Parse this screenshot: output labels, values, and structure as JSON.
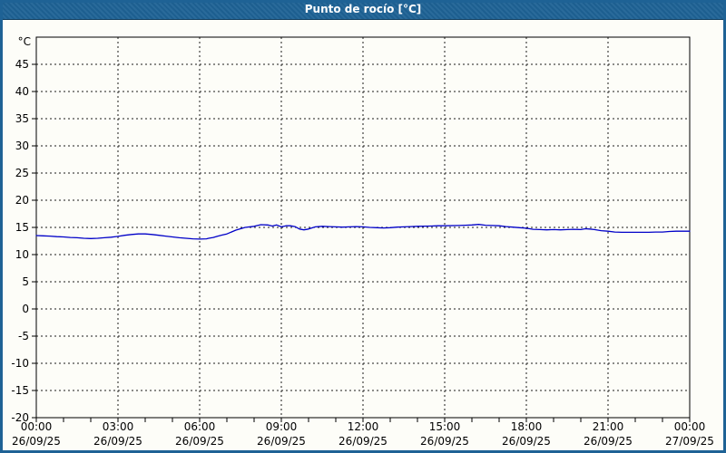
{
  "window": {
    "title": "Punto de rocío [°C]"
  },
  "colors": {
    "titlebar_bg": "#1e6295",
    "frame_border": "#1e6295",
    "page_bg": "#fdfdf8",
    "grid": "#1a1a1a",
    "axis": "#000000",
    "series_line": "#0000c8",
    "title_text": "#ffffff",
    "label_text": "#000000"
  },
  "chart_data": {
    "type": "line",
    "title": "Punto de rocío [°C]",
    "ylabel": "°C",
    "xlabel": "",
    "ylim": [
      -20,
      50
    ],
    "ytick_step": 5,
    "ytick_labels": [
      "45",
      "40",
      "35",
      "30",
      "25",
      "20",
      "15",
      "10",
      "5",
      "0",
      "-5",
      "-10",
      "-15",
      "-20"
    ],
    "x_hours_range": [
      0,
      24
    ],
    "x_minor_tick_hours": 1,
    "grid": "dashed",
    "legend": "none",
    "x_major_ticks": [
      {
        "hour": 0,
        "time": "00:00",
        "date": "26/09/25"
      },
      {
        "hour": 3,
        "time": "03:00",
        "date": "26/09/25"
      },
      {
        "hour": 6,
        "time": "06:00",
        "date": "26/09/25"
      },
      {
        "hour": 9,
        "time": "09:00",
        "date": "26/09/25"
      },
      {
        "hour": 12,
        "time": "12:00",
        "date": "26/09/25"
      },
      {
        "hour": 15,
        "time": "15:00",
        "date": "26/09/25"
      },
      {
        "hour": 18,
        "time": "18:00",
        "date": "26/09/25"
      },
      {
        "hour": 21,
        "time": "21:00",
        "date": "26/09/25"
      },
      {
        "hour": 24,
        "time": "00:00",
        "date": "27/09/25"
      }
    ],
    "series": [
      {
        "name": "Punto de rocío",
        "color": "#0000c8",
        "points": [
          [
            0,
            13.5
          ],
          [
            0.25,
            13.45
          ],
          [
            0.5,
            13.4
          ],
          [
            0.75,
            13.3
          ],
          [
            1,
            13.25
          ],
          [
            1.25,
            13.15
          ],
          [
            1.5,
            13.1
          ],
          [
            1.75,
            13.0
          ],
          [
            2,
            12.95
          ],
          [
            2.25,
            13.0
          ],
          [
            2.5,
            13.1
          ],
          [
            2.75,
            13.2
          ],
          [
            3,
            13.35
          ],
          [
            3.25,
            13.55
          ],
          [
            3.5,
            13.7
          ],
          [
            3.75,
            13.8
          ],
          [
            4,
            13.8
          ],
          [
            4.25,
            13.7
          ],
          [
            4.5,
            13.55
          ],
          [
            4.75,
            13.4
          ],
          [
            5,
            13.25
          ],
          [
            5.25,
            13.1
          ],
          [
            5.5,
            13.0
          ],
          [
            5.75,
            12.9
          ],
          [
            6,
            12.85
          ],
          [
            6.25,
            12.9
          ],
          [
            6.33,
            13.0
          ],
          [
            6.5,
            13.15
          ],
          [
            6.67,
            13.4
          ],
          [
            6.83,
            13.6
          ],
          [
            7,
            13.8
          ],
          [
            7.33,
            14.5
          ],
          [
            7.67,
            15.0
          ],
          [
            8,
            15.2
          ],
          [
            8.25,
            15.5
          ],
          [
            8.5,
            15.45
          ],
          [
            8.67,
            15.25
          ],
          [
            8.83,
            15.45
          ],
          [
            9,
            15.1
          ],
          [
            9.17,
            15.3
          ],
          [
            9.33,
            15.3
          ],
          [
            9.5,
            15.15
          ],
          [
            9.67,
            14.7
          ],
          [
            9.83,
            14.55
          ],
          [
            10,
            14.7
          ],
          [
            10.25,
            15.1
          ],
          [
            10.5,
            15.2
          ],
          [
            10.75,
            15.15
          ],
          [
            11,
            15.1
          ],
          [
            11.25,
            15.05
          ],
          [
            11.5,
            15.1
          ],
          [
            11.75,
            15.15
          ],
          [
            12,
            15.1
          ],
          [
            12.25,
            15.0
          ],
          [
            12.5,
            14.95
          ],
          [
            12.75,
            14.9
          ],
          [
            13,
            14.95
          ],
          [
            13.25,
            15.05
          ],
          [
            13.5,
            15.1
          ],
          [
            13.75,
            15.15
          ],
          [
            14,
            15.2
          ],
          [
            14.5,
            15.25
          ],
          [
            14.75,
            15.3
          ],
          [
            15,
            15.3
          ],
          [
            15.5,
            15.35
          ],
          [
            15.75,
            15.4
          ],
          [
            16,
            15.45
          ],
          [
            16.25,
            15.55
          ],
          [
            16.5,
            15.4
          ],
          [
            16.75,
            15.35
          ],
          [
            17,
            15.3
          ],
          [
            17.25,
            15.15
          ],
          [
            17.5,
            15.05
          ],
          [
            17.75,
            14.95
          ],
          [
            18,
            14.85
          ],
          [
            18.25,
            14.65
          ],
          [
            18.5,
            14.6
          ],
          [
            18.75,
            14.55
          ],
          [
            19,
            14.6
          ],
          [
            19.25,
            14.55
          ],
          [
            19.5,
            14.6
          ],
          [
            19.75,
            14.65
          ],
          [
            20,
            14.6
          ],
          [
            20.17,
            14.75
          ],
          [
            20.33,
            14.7
          ],
          [
            20.5,
            14.6
          ],
          [
            20.75,
            14.4
          ],
          [
            21,
            14.3
          ],
          [
            21.25,
            14.15
          ],
          [
            21.5,
            14.1
          ],
          [
            22,
            14.1
          ],
          [
            22.5,
            14.1
          ],
          [
            22.75,
            14.15
          ],
          [
            23,
            14.15
          ],
          [
            23.25,
            14.25
          ],
          [
            23.5,
            14.3
          ],
          [
            24,
            14.3
          ]
        ]
      }
    ]
  }
}
